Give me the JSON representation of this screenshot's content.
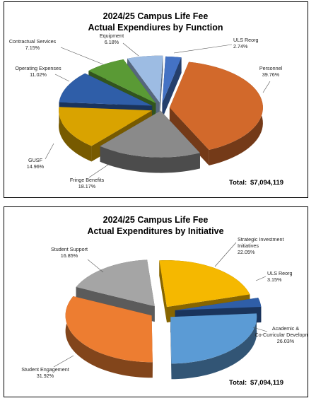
{
  "chart_data": [
    {
      "type": "pie",
      "title": "2024/25 Campus Life Fee",
      "subtitle": "Actual Expendiures by Function",
      "total_label": "Total:",
      "total_value": "$7,094,119",
      "start_angle_deg": 88,
      "slices": [
        {
          "name": "ULS  Reorg",
          "pct_label": "2.74%",
          "value": 2.74,
          "color": "#4472c4",
          "explode": 12
        },
        {
          "name": "Personnel",
          "pct_label": "39.76%",
          "value": 39.76,
          "color": "#d2692b",
          "explode": 12
        },
        {
          "name": "Fringe Benefits",
          "pct_label": "18.17%",
          "value": 18.17,
          "color": "#8a8a8a",
          "explode": 6
        },
        {
          "name": "GUSF",
          "pct_label": "14.96%",
          "value": 14.96,
          "color": "#d9a300",
          "explode": 14
        },
        {
          "name": "Operating Expenses",
          "pct_label": "11.02%",
          "value": 11.02,
          "color": "#2f5ea8",
          "explode": 14
        },
        {
          "name": "Contractual Services",
          "pct_label": "7.15%",
          "value": 7.15,
          "color": "#5a9a35",
          "explode": 14
        },
        {
          "name": "Equipment",
          "pct_label": "6.18%",
          "value": 6.18,
          "color": "#9dbce3",
          "explode": 14
        }
      ]
    },
    {
      "type": "pie",
      "title": "2024/25 Campus Life Fee",
      "subtitle": "Actual Expenditures by Initiative",
      "total_label": "Total:",
      "total_value": "$7,094,119",
      "start_angle_deg": 95,
      "slices": [
        {
          "name": "Strategic Investment Initiatives",
          "pct_label": "22.05%",
          "value": 22.05,
          "color": "#f5b800",
          "explode": 14
        },
        {
          "name": "ULS Reorg",
          "pct_label": "3.15%",
          "value": 3.15,
          "color": "#2f5ea8",
          "explode": 20
        },
        {
          "name": "Academic & Co-Curricular Development",
          "pct_label": "26.03%",
          "value": 26.03,
          "color": "#5b9bd5",
          "explode": 18
        },
        {
          "name": "Student Engagement",
          "pct_label": "31.92%",
          "value": 31.92,
          "color": "#ed7d31",
          "explode": 16
        },
        {
          "name": "Student Support",
          "pct_label": "16.85%",
          "value": 16.85,
          "color": "#a5a5a5",
          "explode": 16
        }
      ]
    }
  ]
}
